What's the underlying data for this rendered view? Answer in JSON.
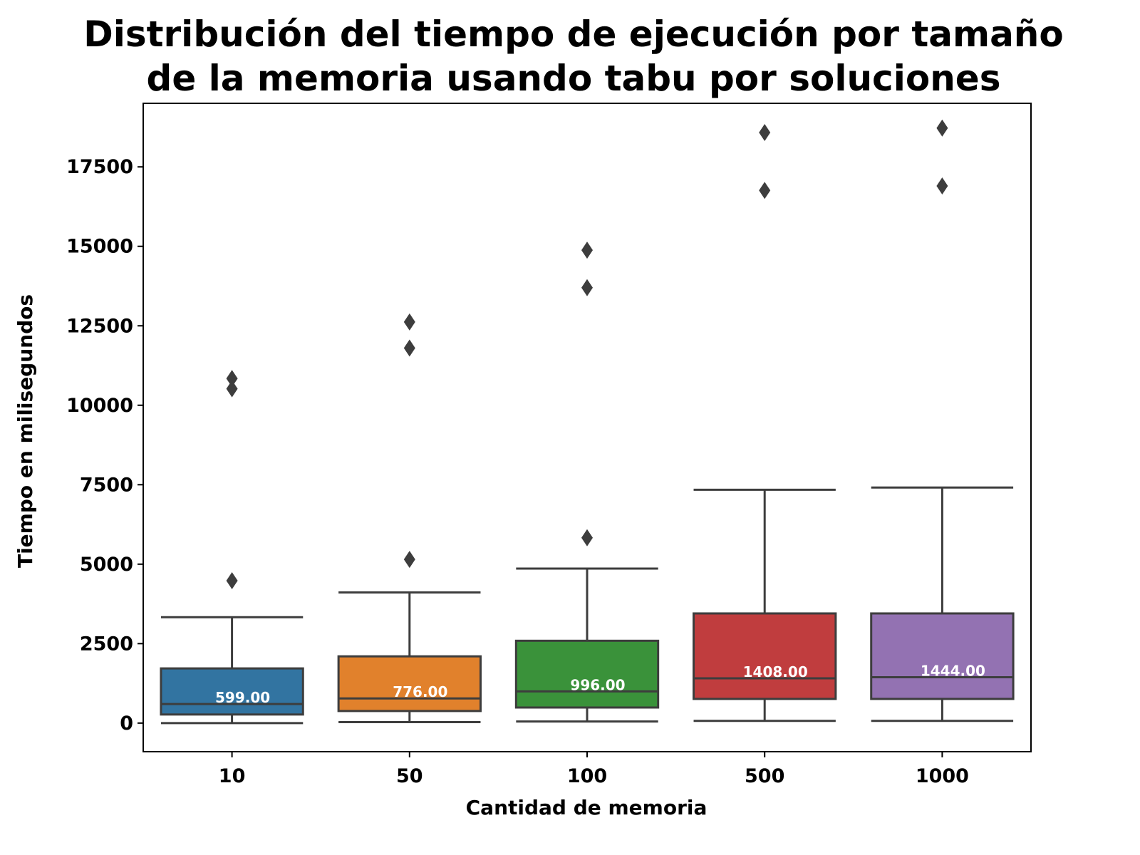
{
  "chart_data": {
    "type": "box",
    "title_lines": [
      "Distribución del tiempo de ejecución por tamaño",
      "de la memoria usando tabu por soluciones"
    ],
    "xlabel": "Cantidad de memoria",
    "ylabel": "Tiempo en milisegundos",
    "categories": [
      "10",
      "50",
      "100",
      "500",
      "1000"
    ],
    "ylim": [
      -900,
      19500
    ],
    "yticks": [
      0,
      2500,
      5000,
      7500,
      10000,
      12500,
      15000,
      17500
    ],
    "grid": false,
    "legend": "none",
    "boxes": [
      {
        "category": "10",
        "color": "#3274a1",
        "whisker_low": 0,
        "q1": 270,
        "median": 599,
        "q3": 1720,
        "whisker_high": 3330,
        "outliers": [
          4480,
          10520,
          10840
        ],
        "median_label": "599.00"
      },
      {
        "category": "50",
        "color": "#e1812c",
        "whisker_low": 30,
        "q1": 380,
        "median": 776,
        "q3": 2100,
        "whisker_high": 4110,
        "outliers": [
          5150,
          11800,
          12620
        ],
        "median_label": "776.00"
      },
      {
        "category": "100",
        "color": "#3a923a",
        "whisker_low": 50,
        "q1": 490,
        "median": 996,
        "q3": 2590,
        "whisker_high": 4860,
        "outliers": [
          5830,
          13700,
          14880
        ],
        "median_label": "996.00"
      },
      {
        "category": "500",
        "color": "#c03d3e",
        "whisker_low": 70,
        "q1": 760,
        "median": 1408,
        "q3": 3450,
        "whisker_high": 7340,
        "outliers": [
          16760,
          18580
        ],
        "median_label": "1408.00"
      },
      {
        "category": "1000",
        "color": "#9372b2",
        "whisker_low": 70,
        "q1": 760,
        "median": 1444,
        "q3": 3450,
        "whisker_high": 7410,
        "outliers": [
          16900,
          18720
        ],
        "median_label": "1444.00"
      }
    ]
  }
}
